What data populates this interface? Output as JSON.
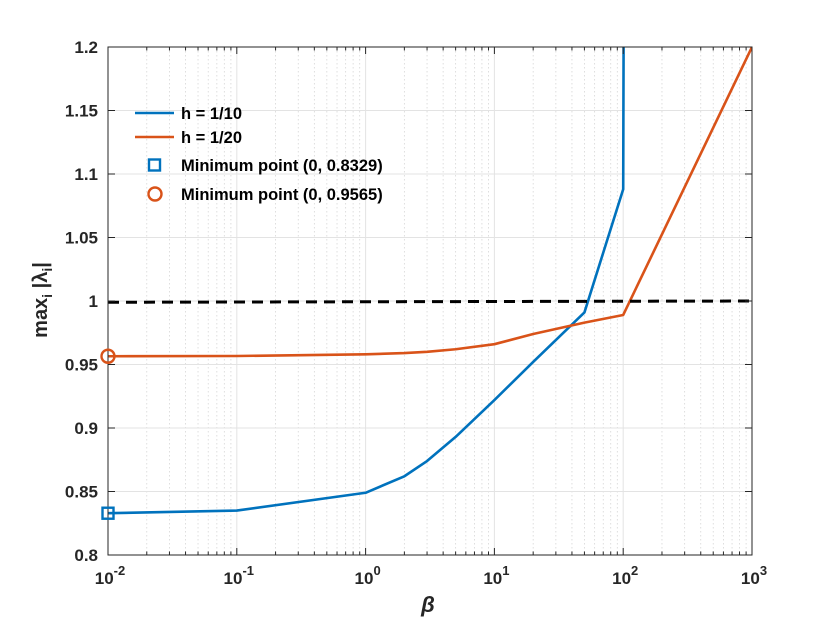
{
  "chart_data": {
    "type": "line",
    "xscale": "log",
    "xlim": [
      0.01,
      1000
    ],
    "ylim": [
      0.8,
      1.2
    ],
    "xlabel": "β",
    "ylabel": "max_i |λ_i|",
    "grid": true,
    "legend_position": "top-left",
    "x_tick_values": [
      0.01,
      0.1,
      1,
      10,
      100,
      1000
    ],
    "x_tick_labels": [
      {
        "base": "10",
        "exp": "-2"
      },
      {
        "base": "10",
        "exp": "-1"
      },
      {
        "base": "10",
        "exp": "0"
      },
      {
        "base": "10",
        "exp": "1"
      },
      {
        "base": "10",
        "exp": "2"
      },
      {
        "base": "10",
        "exp": "3"
      }
    ],
    "y_ticks": [
      "0.8",
      "0.85",
      "0.9",
      "0.95",
      "1",
      "1.05",
      "1.1",
      "1.15",
      "1.2"
    ],
    "series": [
      {
        "name": "h = 1/10",
        "color": "#0072BD",
        "x": [
          0.01,
          0.1,
          1,
          2,
          3,
          5,
          10,
          20,
          50,
          100,
          101
        ],
        "y": [
          0.8329,
          0.835,
          0.849,
          0.862,
          0.874,
          0.893,
          0.922,
          0.952,
          0.991,
          1.088,
          1.25
        ]
      },
      {
        "name": "h = 1/20",
        "color": "#D95319",
        "x": [
          0.01,
          0.1,
          1,
          2,
          3,
          5,
          10,
          20,
          50,
          100,
          1000
        ],
        "y": [
          0.9565,
          0.9567,
          0.958,
          0.959,
          0.96,
          0.962,
          0.966,
          0.974,
          0.983,
          0.989,
          1.2
        ]
      },
      {
        "name": "",
        "color": "#000000",
        "dashed": true,
        "x": [
          0.01,
          1000
        ],
        "y": [
          0.999,
          1.0
        ]
      }
    ],
    "markers": [
      {
        "name": "Minimum point (0, 0.8329)",
        "shape": "square",
        "color": "#0072BD",
        "x": 0.01,
        "y": 0.8329
      },
      {
        "name": "Minimum point (0, 0.9565)",
        "shape": "circle",
        "color": "#D95319",
        "x": 0.01,
        "y": 0.9565
      }
    ],
    "legend": [
      {
        "label": "h = 1/10",
        "kind": "line",
        "color": "#0072BD"
      },
      {
        "label": "h = 1/20",
        "kind": "line",
        "color": "#D95319"
      },
      {
        "label": "Minimum point (0, 0.8329)",
        "kind": "square",
        "color": "#0072BD"
      },
      {
        "label": "Minimum point (0, 0.9565)",
        "kind": "circle",
        "color": "#D95319"
      }
    ]
  }
}
